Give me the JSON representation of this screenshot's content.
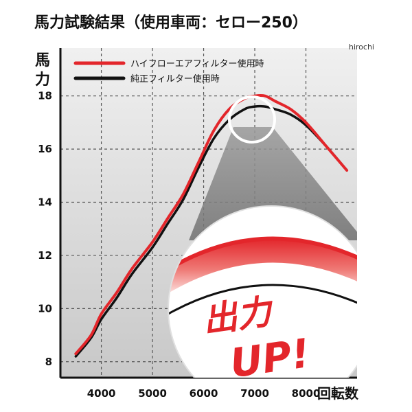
{
  "title": "馬力試験結果（使用車両：セロー250）",
  "watermark": "hirochi",
  "chart_data": {
    "type": "line",
    "ylabel": "馬力",
    "xlabel": "回転数",
    "xlim": [
      3200,
      9000
    ],
    "ylim": [
      7.4,
      19.8
    ],
    "x_ticks": [
      4000,
      5000,
      6000,
      7000,
      8000
    ],
    "y_ticks": [
      8,
      10,
      12,
      14,
      16,
      18
    ],
    "grid": true,
    "legend_position": "top-left",
    "series": [
      {
        "name": "ハイフローエアフィルター使用時",
        "color": "#e3262b",
        "x": [
          3500,
          3800,
          4000,
          4300,
          4600,
          5000,
          5300,
          5600,
          5900,
          6200,
          6500,
          6800,
          7000,
          7200,
          7400,
          7700,
          8000,
          8400,
          8800
        ],
        "y": [
          8.3,
          9.0,
          9.8,
          10.6,
          11.5,
          12.5,
          13.4,
          14.3,
          15.5,
          16.7,
          17.5,
          17.9,
          18.0,
          18.0,
          17.8,
          17.5,
          17.0,
          16.1,
          15.2
        ]
      },
      {
        "name": "純正フィルター使用時",
        "color": "#111111",
        "x": [
          3500,
          3800,
          4000,
          4300,
          4600,
          5000,
          5300,
          5600,
          5900,
          6200,
          6500,
          6800,
          7000,
          7200,
          7400,
          7700,
          8000,
          8400,
          8800
        ],
        "y": [
          8.2,
          8.9,
          9.6,
          10.4,
          11.3,
          12.3,
          13.2,
          14.1,
          15.3,
          16.4,
          17.1,
          17.5,
          17.6,
          17.6,
          17.5,
          17.3,
          16.9,
          16.1,
          15.2
        ]
      }
    ],
    "annotation": {
      "line1": "出力",
      "line2": "UP!"
    }
  }
}
